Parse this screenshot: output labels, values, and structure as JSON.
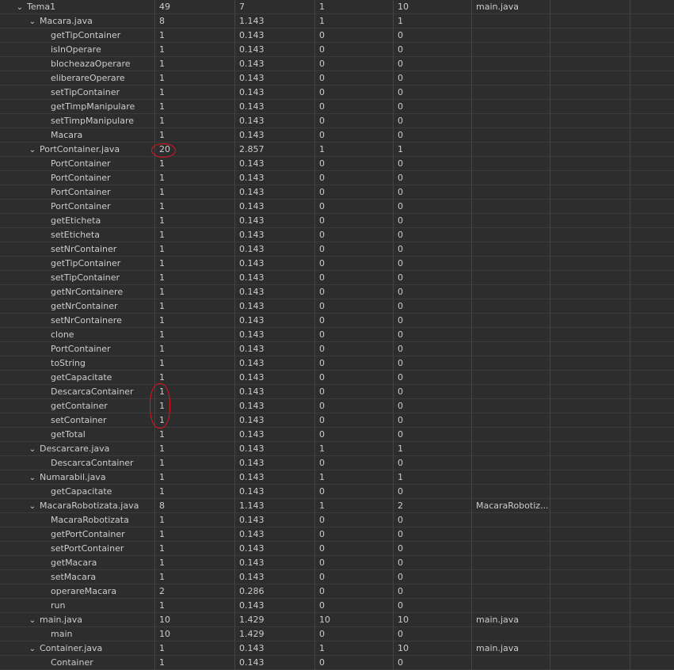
{
  "accent_color": "#e0141e",
  "rows": [
    {
      "name": "Tema1",
      "level": 0,
      "expanded": true,
      "cols": [
        "49",
        "7",
        "1",
        "10",
        "main.java"
      ]
    },
    {
      "name": "Macara.java",
      "level": 1,
      "expanded": true,
      "cols": [
        "8",
        "1.143",
        "1",
        "1",
        ""
      ]
    },
    {
      "name": "getTipContainer",
      "level": 2,
      "cols": [
        "1",
        "0.143",
        "0",
        "0",
        ""
      ]
    },
    {
      "name": "isInOperare",
      "level": 2,
      "cols": [
        "1",
        "0.143",
        "0",
        "0",
        ""
      ]
    },
    {
      "name": "blocheazaOperare",
      "level": 2,
      "cols": [
        "1",
        "0.143",
        "0",
        "0",
        ""
      ]
    },
    {
      "name": "eliberareOperare",
      "level": 2,
      "cols": [
        "1",
        "0.143",
        "0",
        "0",
        ""
      ]
    },
    {
      "name": "setTipContainer",
      "level": 2,
      "cols": [
        "1",
        "0.143",
        "0",
        "0",
        ""
      ]
    },
    {
      "name": "getTimpManipulare",
      "level": 2,
      "cols": [
        "1",
        "0.143",
        "0",
        "0",
        ""
      ]
    },
    {
      "name": "setTimpManipulare",
      "level": 2,
      "cols": [
        "1",
        "0.143",
        "0",
        "0",
        ""
      ]
    },
    {
      "name": "Macara",
      "level": 2,
      "cols": [
        "1",
        "0.143",
        "0",
        "0",
        ""
      ]
    },
    {
      "name": "PortContainer.java",
      "level": 1,
      "expanded": true,
      "cols": [
        "20",
        "2.857",
        "1",
        "1",
        ""
      ]
    },
    {
      "name": "PortContainer",
      "level": 2,
      "cols": [
        "1",
        "0.143",
        "0",
        "0",
        ""
      ]
    },
    {
      "name": "PortContainer",
      "level": 2,
      "cols": [
        "1",
        "0.143",
        "0",
        "0",
        ""
      ]
    },
    {
      "name": "PortContainer",
      "level": 2,
      "cols": [
        "1",
        "0.143",
        "0",
        "0",
        ""
      ]
    },
    {
      "name": "PortContainer",
      "level": 2,
      "cols": [
        "1",
        "0.143",
        "0",
        "0",
        ""
      ]
    },
    {
      "name": "getEticheta",
      "level": 2,
      "cols": [
        "1",
        "0.143",
        "0",
        "0",
        ""
      ]
    },
    {
      "name": "setEticheta",
      "level": 2,
      "cols": [
        "1",
        "0.143",
        "0",
        "0",
        ""
      ]
    },
    {
      "name": "setNrContainer",
      "level": 2,
      "cols": [
        "1",
        "0.143",
        "0",
        "0",
        ""
      ]
    },
    {
      "name": "getTipContainer",
      "level": 2,
      "cols": [
        "1",
        "0.143",
        "0",
        "0",
        ""
      ]
    },
    {
      "name": "setTipContainer",
      "level": 2,
      "cols": [
        "1",
        "0.143",
        "0",
        "0",
        ""
      ]
    },
    {
      "name": "getNrContainere",
      "level": 2,
      "cols": [
        "1",
        "0.143",
        "0",
        "0",
        ""
      ]
    },
    {
      "name": "getNrContainer",
      "level": 2,
      "cols": [
        "1",
        "0.143",
        "0",
        "0",
        ""
      ]
    },
    {
      "name": "setNrContainere",
      "level": 2,
      "cols": [
        "1",
        "0.143",
        "0",
        "0",
        ""
      ]
    },
    {
      "name": "clone",
      "level": 2,
      "cols": [
        "1",
        "0.143",
        "0",
        "0",
        ""
      ]
    },
    {
      "name": "PortContainer",
      "level": 2,
      "cols": [
        "1",
        "0.143",
        "0",
        "0",
        ""
      ]
    },
    {
      "name": "toString",
      "level": 2,
      "cols": [
        "1",
        "0.143",
        "0",
        "0",
        ""
      ]
    },
    {
      "name": "getCapacitate",
      "level": 2,
      "cols": [
        "1",
        "0.143",
        "0",
        "0",
        ""
      ]
    },
    {
      "name": "DescarcaContainer",
      "level": 2,
      "cols": [
        "1",
        "0.143",
        "0",
        "0",
        ""
      ]
    },
    {
      "name": "getContainer",
      "level": 2,
      "cols": [
        "1",
        "0.143",
        "0",
        "0",
        ""
      ]
    },
    {
      "name": "setContainer",
      "level": 2,
      "cols": [
        "1",
        "0.143",
        "0",
        "0",
        ""
      ]
    },
    {
      "name": "getTotal",
      "level": 2,
      "cols": [
        "1",
        "0.143",
        "0",
        "0",
        ""
      ]
    },
    {
      "name": "Descarcare.java",
      "level": 1,
      "expanded": true,
      "cols": [
        "1",
        "0.143",
        "1",
        "1",
        ""
      ]
    },
    {
      "name": "DescarcaContainer",
      "level": 2,
      "cols": [
        "1",
        "0.143",
        "0",
        "0",
        ""
      ]
    },
    {
      "name": "Numarabil.java",
      "level": 1,
      "expanded": true,
      "cols": [
        "1",
        "0.143",
        "1",
        "1",
        ""
      ]
    },
    {
      "name": "getCapacitate",
      "level": 2,
      "cols": [
        "1",
        "0.143",
        "0",
        "0",
        ""
      ]
    },
    {
      "name": "MacaraRobotizata.java",
      "level": 1,
      "expanded": true,
      "cols": [
        "8",
        "1.143",
        "1",
        "2",
        "MacaraRobotiz..."
      ]
    },
    {
      "name": "MacaraRobotizata",
      "level": 2,
      "cols": [
        "1",
        "0.143",
        "0",
        "0",
        ""
      ]
    },
    {
      "name": "getPortContainer",
      "level": 2,
      "cols": [
        "1",
        "0.143",
        "0",
        "0",
        ""
      ]
    },
    {
      "name": "setPortContainer",
      "level": 2,
      "cols": [
        "1",
        "0.143",
        "0",
        "0",
        ""
      ]
    },
    {
      "name": "getMacara",
      "level": 2,
      "cols": [
        "1",
        "0.143",
        "0",
        "0",
        ""
      ]
    },
    {
      "name": "setMacara",
      "level": 2,
      "cols": [
        "1",
        "0.143",
        "0",
        "0",
        ""
      ]
    },
    {
      "name": "operareMacara",
      "level": 2,
      "cols": [
        "2",
        "0.286",
        "0",
        "0",
        ""
      ]
    },
    {
      "name": "run",
      "level": 2,
      "cols": [
        "1",
        "0.143",
        "0",
        "0",
        ""
      ]
    },
    {
      "name": "main.java",
      "level": 1,
      "expanded": true,
      "cols": [
        "10",
        "1.429",
        "10",
        "10",
        "main.java"
      ]
    },
    {
      "name": "main",
      "level": 2,
      "cols": [
        "10",
        "1.429",
        "0",
        "0",
        ""
      ]
    },
    {
      "name": "Container.java",
      "level": 1,
      "expanded": true,
      "cols": [
        "1",
        "0.143",
        "1",
        "10",
        "main.java"
      ]
    },
    {
      "name": "Container",
      "level": 2,
      "cols": [
        "1",
        "0.143",
        "0",
        "0",
        ""
      ]
    }
  ]
}
